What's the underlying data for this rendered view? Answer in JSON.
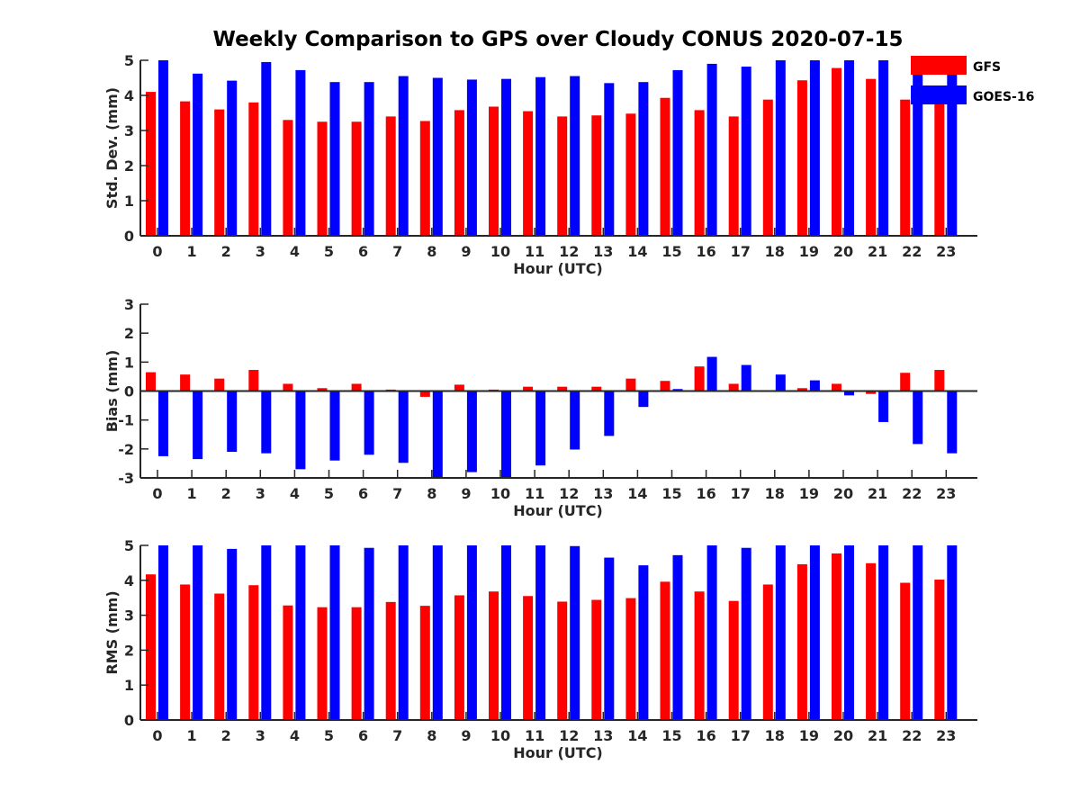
{
  "figure": {
    "title": "Weekly Comparison to GPS over Cloudy CONUS 2020-07-15"
  },
  "colors": {
    "GFS": "#ff0000",
    "GOES-16": "#0000ff",
    "axis": "#262626"
  },
  "legend": {
    "placement": "top-right",
    "entries": [
      "GFS",
      "GOES-16"
    ]
  },
  "chart_data": [
    {
      "type": "bar",
      "xlabel": "Hour (UTC)",
      "ylabel": "Std. Dev. (mm)",
      "ylim": [
        0,
        5
      ],
      "yticks": [
        0,
        1,
        2,
        3,
        4,
        5
      ],
      "categories": [
        "0",
        "1",
        "2",
        "3",
        "4",
        "5",
        "6",
        "7",
        "8",
        "9",
        "10",
        "11",
        "12",
        "13",
        "14",
        "15",
        "16",
        "17",
        "18",
        "19",
        "20",
        "21",
        "22",
        "23"
      ],
      "series": [
        {
          "name": "GFS",
          "values": [
            4.1,
            3.83,
            3.6,
            3.8,
            3.3,
            3.25,
            3.25,
            3.4,
            3.27,
            3.58,
            3.68,
            3.55,
            3.4,
            3.43,
            3.48,
            3.93,
            3.58,
            3.4,
            3.88,
            4.43,
            4.78,
            4.47,
            3.88,
            3.85
          ]
        },
        {
          "name": "GOES-16",
          "values": [
            5.0,
            4.62,
            4.42,
            4.95,
            4.72,
            4.38,
            4.38,
            4.55,
            4.5,
            4.45,
            4.47,
            4.52,
            4.55,
            4.35,
            4.38,
            4.72,
            4.9,
            4.82,
            5.0,
            5.0,
            5.0,
            5.0,
            4.6,
            4.6
          ]
        }
      ]
    },
    {
      "type": "bar",
      "xlabel": "Hour (UTC)",
      "ylabel": "Bias (mm)",
      "ylim": [
        -3,
        3
      ],
      "yticks": [
        -3,
        -2,
        -1,
        0,
        1,
        2,
        3
      ],
      "categories": [
        "0",
        "1",
        "2",
        "3",
        "4",
        "5",
        "6",
        "7",
        "8",
        "9",
        "10",
        "11",
        "12",
        "13",
        "14",
        "15",
        "16",
        "17",
        "18",
        "19",
        "20",
        "21",
        "22",
        "23"
      ],
      "series": [
        {
          "name": "GFS",
          "values": [
            0.65,
            0.57,
            0.43,
            0.73,
            0.25,
            0.1,
            0.25,
            0.05,
            -0.2,
            0.22,
            0.05,
            0.15,
            0.15,
            0.15,
            0.43,
            0.35,
            0.85,
            0.25,
            0.03,
            0.1,
            0.25,
            -0.1,
            0.63,
            0.73
          ]
        },
        {
          "name": "GOES-16",
          "values": [
            -2.25,
            -2.35,
            -2.1,
            -2.15,
            -2.7,
            -2.4,
            -2.2,
            -2.48,
            -3.0,
            -2.8,
            -3.0,
            -2.57,
            -2.02,
            -1.55,
            -0.55,
            0.07,
            1.18,
            0.9,
            0.57,
            0.37,
            -0.15,
            -1.07,
            -1.83,
            -2.15
          ]
        }
      ]
    },
    {
      "type": "bar",
      "xlabel": "Hour (UTC)",
      "ylabel": "RMS (mm)",
      "ylim": [
        0,
        5
      ],
      "yticks": [
        0,
        1,
        2,
        3,
        4,
        5
      ],
      "categories": [
        "0",
        "1",
        "2",
        "3",
        "4",
        "5",
        "6",
        "7",
        "8",
        "9",
        "10",
        "11",
        "12",
        "13",
        "14",
        "15",
        "16",
        "17",
        "18",
        "19",
        "20",
        "21",
        "22",
        "23"
      ],
      "series": [
        {
          "name": "GFS",
          "values": [
            4.17,
            3.88,
            3.62,
            3.86,
            3.28,
            3.23,
            3.23,
            3.38,
            3.27,
            3.57,
            3.68,
            3.55,
            3.39,
            3.44,
            3.49,
            3.96,
            3.68,
            3.41,
            3.88,
            4.46,
            4.77,
            4.49,
            3.93,
            4.02
          ]
        },
        {
          "name": "GOES-16",
          "values": [
            5.0,
            5.0,
            4.9,
            5.0,
            5.0,
            5.0,
            4.93,
            5.0,
            5.0,
            5.0,
            5.0,
            5.0,
            4.98,
            4.65,
            4.43,
            4.72,
            5.0,
            4.93,
            5.0,
            5.0,
            5.0,
            5.0,
            5.0,
            5.0
          ]
        }
      ]
    }
  ]
}
